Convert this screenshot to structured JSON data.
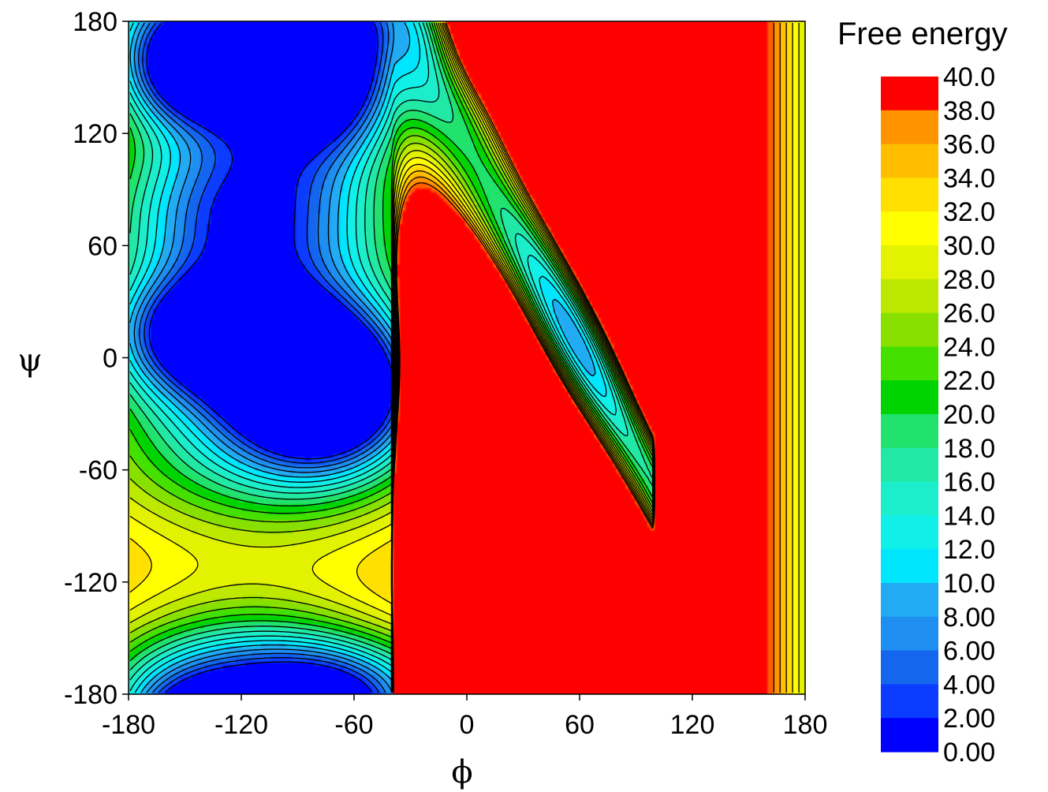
{
  "chart_data": {
    "type": "heatmap",
    "xlabel": "ϕ",
    "ylabel": "ψ",
    "xlim": [
      -180,
      180
    ],
    "ylim": [
      -180,
      180
    ],
    "x_ticks": [
      "-180",
      "-120",
      "-60",
      "0",
      "60",
      "120",
      "180"
    ],
    "y_ticks": [
      "180",
      "120",
      "60",
      "0",
      "-60",
      "-120",
      "-180"
    ],
    "colorbar": {
      "title": "Free energy",
      "labels": [
        "40.0",
        "38.0",
        "36.0",
        "34.0",
        "32.0",
        "30.0",
        "28.0",
        "26.0",
        "24.0",
        "22.0",
        "20.0",
        "18.0",
        "16.0",
        "14.0",
        "12.0",
        "10.0",
        "8.00",
        "6.00",
        "4.00",
        "2.00",
        "0.00"
      ],
      "levels": [
        0,
        2,
        4,
        6,
        8,
        10,
        12,
        14,
        16,
        18,
        20,
        22,
        24,
        26,
        28,
        30,
        32,
        34,
        36,
        38,
        40
      ],
      "colors": [
        "#0000ff",
        "#0b3cff",
        "#1466ee",
        "#1e8ef0",
        "#22aaf2",
        "#00e6ff",
        "#10f0e8",
        "#1ceecc",
        "#22e8a6",
        "#22e26e",
        "#00d400",
        "#44e000",
        "#88e000",
        "#bde800",
        "#e2f200",
        "#ffff00",
        "#ffe000",
        "#ffbe00",
        "#ff9400",
        "#ff5e00"
      ],
      "top_color": "#ff0000"
    },
    "grid": false,
    "contour_lines": true
  }
}
